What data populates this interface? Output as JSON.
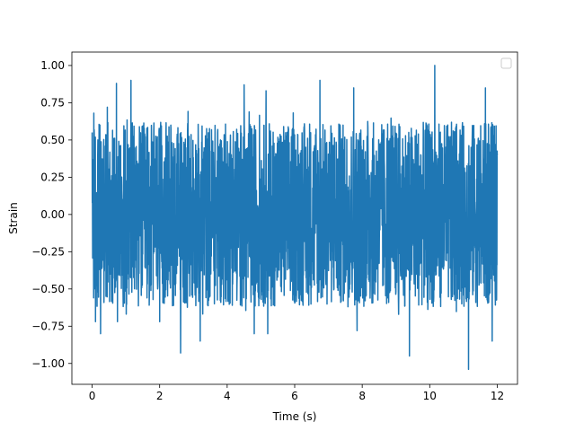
{
  "chart_data": {
    "type": "line",
    "title": "",
    "xlabel": "Time (s)",
    "ylabel": "Strain",
    "xlim": [
      -0.6,
      12.6
    ],
    "ylim": [
      -1.14,
      1.09
    ],
    "xticks": [
      0,
      2,
      4,
      6,
      8,
      10,
      12
    ],
    "xtick_labels": [
      "0",
      "2",
      "4",
      "6",
      "8",
      "10",
      "12"
    ],
    "yticks": [
      -1.0,
      -0.75,
      -0.5,
      -0.25,
      0.0,
      0.25,
      0.5,
      0.75,
      1.0
    ],
    "ytick_labels": [
      "−1.00",
      "−0.75",
      "−0.50",
      "−0.25",
      "0.00",
      "0.25",
      "0.50",
      "0.75",
      "1.00"
    ],
    "grid": false,
    "legend_position": "upper right",
    "legend_entries": [],
    "series": [
      {
        "color": "#1f77b4",
        "x_range": [
          0,
          12
        ],
        "points": 2400,
        "typical_peak": 0.62,
        "extremes_max": [
          [
            0.05,
            0.68
          ],
          [
            0.45,
            0.72
          ],
          [
            0.72,
            0.88
          ],
          [
            1.15,
            0.9
          ],
          [
            2.62,
            0.8
          ],
          [
            4.5,
            0.87
          ],
          [
            5.15,
            0.83
          ],
          [
            6.75,
            0.9
          ],
          [
            7.75,
            0.85
          ],
          [
            10.15,
            1.0
          ],
          [
            11.15,
            0.92
          ],
          [
            11.65,
            0.85
          ]
        ],
        "extremes_min": [
          [
            0.1,
            -0.72
          ],
          [
            0.25,
            -0.8
          ],
          [
            0.75,
            -0.72
          ],
          [
            2.0,
            -0.72
          ],
          [
            2.62,
            -0.93
          ],
          [
            3.2,
            -0.85
          ],
          [
            4.8,
            -0.8
          ],
          [
            5.2,
            -0.8
          ],
          [
            7.85,
            -0.78
          ],
          [
            9.4,
            -0.95
          ],
          [
            11.15,
            -1.04
          ],
          [
            11.85,
            -0.85
          ]
        ]
      }
    ]
  }
}
